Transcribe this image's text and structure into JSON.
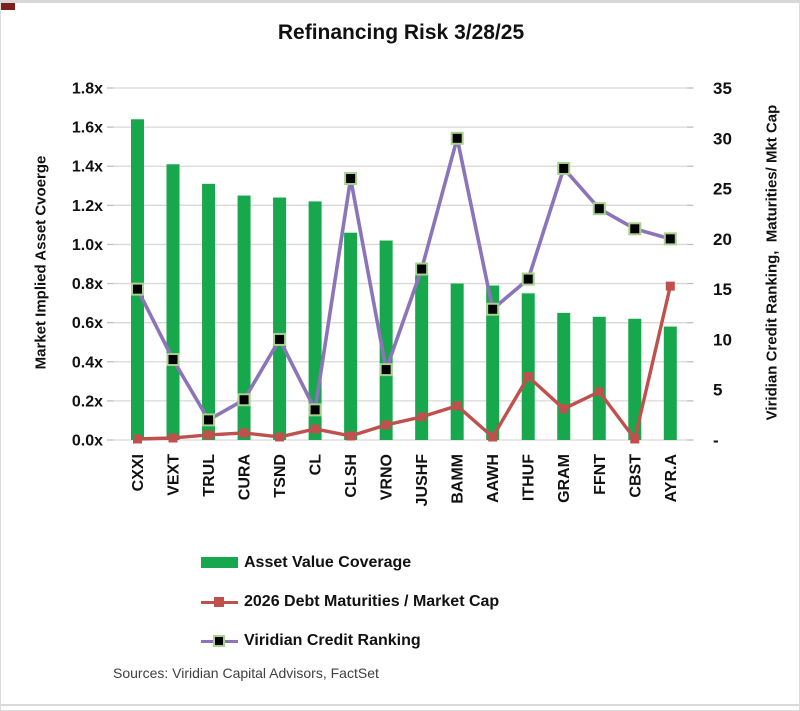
{
  "window": {
    "corner_artifact_color": "#7d1f1f"
  },
  "chart_data": {
    "type": "combo-bar-line",
    "title": "Refinancing Risk 3/28/25",
    "categories": [
      "CXXI",
      "VEXT",
      "TRUL",
      "CURA",
      "TSND",
      "CL",
      "CLSH",
      "VRNO",
      "JUSHF",
      "BAMM",
      "AAWH",
      "ITHUF",
      "GRAM",
      "FFNT",
      "CBST",
      "AYR.A"
    ],
    "series": [
      {
        "name": "Asset Value Coverage",
        "type": "bar",
        "axis": "left",
        "values": [
          1.64,
          1.41,
          1.31,
          1.25,
          1.24,
          1.22,
          1.06,
          1.02,
          0.85,
          0.8,
          0.79,
          0.75,
          0.65,
          0.63,
          0.62,
          0.58
        ]
      },
      {
        "name": "2026 Debt Maturities / Market Cap",
        "type": "line",
        "axis": "right",
        "marker": "square",
        "values": [
          0.1,
          0.2,
          0.5,
          0.7,
          0.3,
          1.1,
          0.4,
          1.5,
          2.3,
          3.4,
          0.3,
          6.3,
          3.1,
          4.8,
          0.1,
          15.3
        ]
      },
      {
        "name": "Viridian Credit Ranking",
        "type": "line",
        "axis": "right",
        "marker": "square-black-green-edge",
        "values": [
          15,
          8,
          2,
          4,
          10,
          3,
          26,
          7,
          17,
          30,
          13,
          16,
          27,
          23,
          21,
          20
        ]
      }
    ],
    "left_axis": {
      "label": "Market Implied Asset Cvoerge",
      "ticks": [
        "1.8x",
        "1.6x",
        "1.4x",
        "1.2x",
        "1.0x",
        "0.8x",
        "0.6x",
        "0.4x",
        "0.2x",
        "0.0x"
      ],
      "range": [
        0,
        1.8
      ]
    },
    "right_axis": {
      "label": "Viridian Credit Ranking,  Maturities/ Mkt Cap",
      "ticks": [
        "35",
        "30",
        "25",
        "20",
        "15",
        "10",
        "5",
        "-"
      ],
      "tick_values": [
        35,
        30,
        25,
        20,
        15,
        10,
        5,
        0
      ],
      "range": [
        0,
        35
      ]
    },
    "grid": true,
    "legend_position": "bottom-left"
  },
  "colors": {
    "bar_green": "#17a74c",
    "line_red": "#c0504d",
    "line_purple": "#8c74ba",
    "marker_fill_black": "#000000",
    "marker_edge_green": "#a9d18e",
    "gridline": "#d9d9d9",
    "tick_mark": "#bfbfbf",
    "text": "#111111"
  },
  "source_note": "Sources: Viridian Capital Advisors, FactSet"
}
